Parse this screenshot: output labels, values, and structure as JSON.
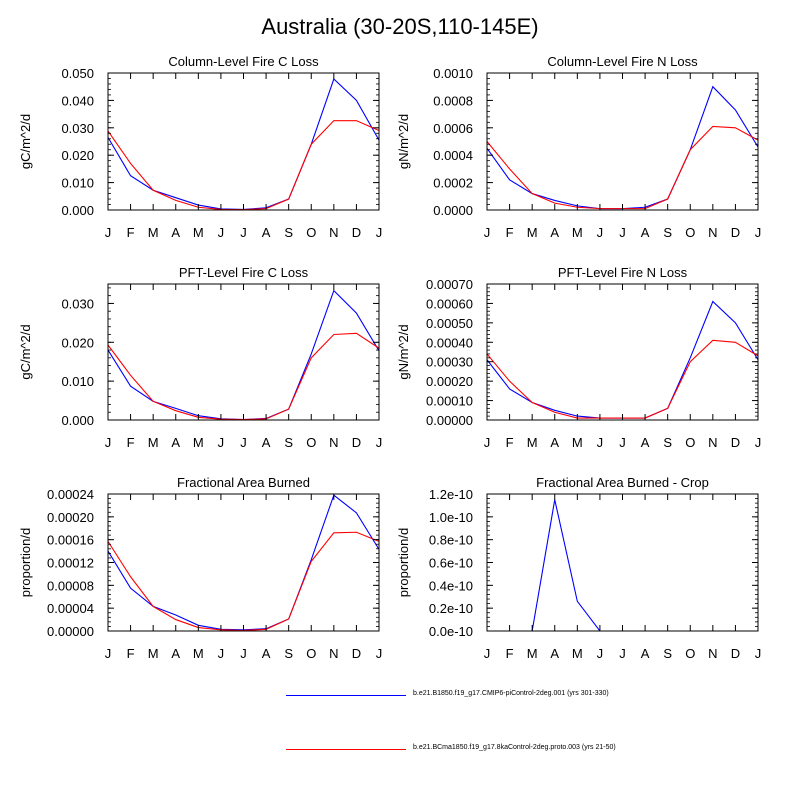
{
  "figure": {
    "title": "Australia (30-20S,110-145E)"
  },
  "colors": {
    "series_1": "#0000ff",
    "series_2": "#ff0000"
  },
  "legend": [
    {
      "label": "b.e21.B1850.f19_g17.CMIP6-piControl-2deg.001 (yrs 301-330)",
      "color": "#0000ff"
    },
    {
      "label": "b.e21.BCma1850.f19_g17.8kaControl-2deg.proto.003 (yrs 21-50)",
      "color": "#ff0000"
    }
  ],
  "chart_data": [
    {
      "type": "line",
      "title": "Column-Level Fire C Loss",
      "ylabel": "gC/m^2/d",
      "categories": [
        "J",
        "F",
        "M",
        "A",
        "M",
        "J",
        "J",
        "A",
        "S",
        "O",
        "N",
        "D",
        "J"
      ],
      "ylim": [
        0,
        0.05
      ],
      "yticks": [
        0,
        0.01,
        0.02,
        0.03,
        0.04,
        0.05
      ],
      "ytick_labels": [
        "0.000",
        "0.010",
        "0.020",
        "0.030",
        "0.040",
        "0.050"
      ],
      "series": [
        {
          "name": "b.e21.B1850.f19_g17.CMIP6-piControl-2deg.001 (yrs 301-330)",
          "values": [
            0.0265,
            0.0125,
            0.0072,
            0.0045,
            0.0018,
            0.0004,
            0.0002,
            0.0008,
            0.004,
            0.024,
            0.0478,
            0.04,
            0.0255
          ]
        },
        {
          "name": "b.e21.BCma1850.f19_g17.8kaControl-2deg.proto.003 (yrs 21-50)",
          "values": [
            0.0288,
            0.017,
            0.0072,
            0.0035,
            0.001,
            0.0002,
            0.0001,
            0.0005,
            0.004,
            0.024,
            0.0326,
            0.0326,
            0.029
          ]
        }
      ]
    },
    {
      "type": "line",
      "title": "Column-Level Fire N Loss",
      "ylabel": "gN/m^2/d",
      "categories": [
        "J",
        "F",
        "M",
        "A",
        "M",
        "J",
        "J",
        "A",
        "S",
        "O",
        "N",
        "D",
        "J"
      ],
      "ylim": [
        0,
        0.001
      ],
      "yticks": [
        0,
        0.0002,
        0.0004,
        0.0006,
        0.0008,
        0.001
      ],
      "ytick_labels": [
        "0.0000",
        "0.0002",
        "0.0004",
        "0.0006",
        "0.0008",
        "0.0010"
      ],
      "series": [
        {
          "name": "b.e21.B1850.f19_g17.CMIP6-piControl-2deg.001 (yrs 301-330)",
          "values": [
            0.00045,
            0.00022,
            0.00012,
            7e-05,
            3e-05,
            1e-05,
            1e-05,
            2e-05,
            8e-05,
            0.00044,
            0.0009,
            0.00073,
            0.00046
          ]
        },
        {
          "name": "b.e21.BCma1850.f19_g17.8kaControl-2deg.proto.003 (yrs 21-50)",
          "values": [
            0.0005,
            0.0003,
            0.00012,
            5e-05,
            2e-05,
            1e-05,
            1e-05,
            1e-05,
            8e-05,
            0.00044,
            0.00061,
            0.0006,
            0.00051
          ]
        }
      ]
    },
    {
      "type": "line",
      "title": "PFT-Level Fire C Loss",
      "ylabel": "gC/m^2/d",
      "categories": [
        "J",
        "F",
        "M",
        "A",
        "M",
        "J",
        "J",
        "A",
        "S",
        "O",
        "N",
        "D",
        "J"
      ],
      "ylim": [
        0,
        0.035
      ],
      "yticks": [
        0,
        0.01,
        0.02,
        0.03
      ],
      "ytick_labels": [
        "0.000",
        "0.010",
        "0.020",
        "0.030"
      ],
      "series": [
        {
          "name": "b.e21.B1850.f19_g17.CMIP6-piControl-2deg.001 (yrs 301-330)",
          "values": [
            0.018,
            0.0087,
            0.0048,
            0.003,
            0.0011,
            0.0003,
            0.0001,
            0.0004,
            0.0028,
            0.017,
            0.0333,
            0.0275,
            0.0178
          ]
        },
        {
          "name": "b.e21.BCma1850.f19_g17.8kaControl-2deg.proto.003 (yrs 21-50)",
          "values": [
            0.0193,
            0.0115,
            0.0048,
            0.0024,
            0.0007,
            0.0002,
            0.0001,
            0.0003,
            0.0028,
            0.016,
            0.022,
            0.0223,
            0.0185
          ]
        }
      ]
    },
    {
      "type": "line",
      "title": "PFT-Level Fire N Loss",
      "ylabel": "gN/m^2/d",
      "categories": [
        "J",
        "F",
        "M",
        "A",
        "M",
        "J",
        "J",
        "A",
        "S",
        "O",
        "N",
        "D",
        "J"
      ],
      "ylim": [
        0,
        0.0007
      ],
      "yticks": [
        0,
        0.0001,
        0.0002,
        0.0003,
        0.0004,
        0.0005,
        0.0006,
        0.0007
      ],
      "ytick_labels": [
        "0.00000",
        "0.00010",
        "0.00020",
        "0.00030",
        "0.00040",
        "0.00050",
        "0.00060",
        "0.00070"
      ],
      "series": [
        {
          "name": "b.e21.B1850.f19_g17.CMIP6-piControl-2deg.001 (yrs 301-330)",
          "values": [
            0.00031,
            0.00016,
            9e-05,
            5e-05,
            2e-05,
            1e-05,
            1e-05,
            1e-05,
            6e-05,
            0.00032,
            0.00061,
            0.0005,
            0.00031
          ]
        },
        {
          "name": "b.e21.BCma1850.f19_g17.8kaControl-2deg.proto.003 (yrs 21-50)",
          "values": [
            0.00034,
            0.0002,
            9e-05,
            4e-05,
            1e-05,
            1e-05,
            1e-05,
            1e-05,
            6e-05,
            0.0003,
            0.00041,
            0.0004,
            0.00033
          ]
        }
      ]
    },
    {
      "type": "line",
      "title": "Fractional Area Burned",
      "ylabel": "proportion/d",
      "categories": [
        "J",
        "F",
        "M",
        "A",
        "M",
        "J",
        "J",
        "A",
        "S",
        "O",
        "N",
        "D",
        "J"
      ],
      "ylim": [
        0,
        0.00024
      ],
      "yticks": [
        0,
        4e-05,
        8e-05,
        0.00012,
        0.00016,
        0.0002,
        0.00024
      ],
      "ytick_labels": [
        "0.00000",
        "0.00004",
        "0.00008",
        "0.00012",
        "0.00016",
        "0.00020",
        "0.00024"
      ],
      "series": [
        {
          "name": "b.e21.B1850.f19_g17.CMIP6-piControl-2deg.001 (yrs 301-330)",
          "values": [
            0.00014,
            7.5e-05,
            4.3e-05,
            2.8e-05,
            1e-05,
            3e-06,
            2e-06,
            4e-06,
            2.1e-05,
            0.000125,
            0.000238,
            0.000207,
            0.000143
          ]
        },
        {
          "name": "b.e21.BCma1850.f19_g17.8kaControl-2deg.proto.003 (yrs 21-50)",
          "values": [
            0.000157,
            9.5e-05,
            4.3e-05,
            2e-05,
            6e-06,
            2e-06,
            1e-06,
            3e-06,
            2.1e-05,
            0.000122,
            0.000172,
            0.000173,
            0.000157
          ]
        }
      ]
    },
    {
      "type": "line",
      "title": "Fractional Area Burned - Crop",
      "ylabel": "proportion/d",
      "categories": [
        "J",
        "F",
        "M",
        "A",
        "M",
        "J",
        "J",
        "A",
        "S",
        "O",
        "N",
        "D",
        "J"
      ],
      "ylim": [
        0,
        1.2e-10
      ],
      "yticks": [
        0,
        2e-11,
        4e-11,
        6e-11,
        8e-11,
        1e-10,
        1.2e-10
      ],
      "ytick_labels": [
        "0.0e-10",
        "0.2e-10",
        "0.4e-10",
        "0.6e-10",
        "0.8e-10",
        "1.0e-10",
        "1.2e-10"
      ],
      "series": [
        {
          "name": "b.e21.B1850.f19_g17.CMIP6-piControl-2deg.001 (yrs 301-330)",
          "values": [
            0,
            0,
            0,
            1.15e-10,
            2.6e-11,
            0,
            0,
            0,
            0,
            0,
            0,
            0,
            0
          ]
        }
      ]
    }
  ]
}
